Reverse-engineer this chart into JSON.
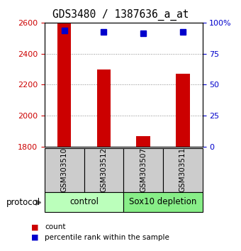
{
  "title": "GDS3480 / 1387636_a_at",
  "samples": [
    "GSM303510",
    "GSM303512",
    "GSM303507",
    "GSM303511"
  ],
  "bar_values": [
    2598,
    2300,
    1870,
    2270
  ],
  "percentile_values": [
    93.5,
    92.5,
    91.5,
    92.5
  ],
  "bar_color": "#cc0000",
  "percentile_color": "#0000cc",
  "ylim_left": [
    1800,
    2600
  ],
  "ylim_right": [
    0,
    100
  ],
  "yticks_left": [
    1800,
    2000,
    2200,
    2400,
    2600
  ],
  "yticks_right": [
    0,
    25,
    50,
    75,
    100
  ],
  "ytick_labels_right": [
    "0",
    "25",
    "50",
    "75",
    "100%"
  ],
  "groups": [
    {
      "label": "control",
      "indices": [
        0,
        1
      ],
      "color": "#bbffbb"
    },
    {
      "label": "Sox10 depletion",
      "indices": [
        2,
        3
      ],
      "color": "#88ee88"
    }
  ],
  "protocol_label": "protocol",
  "legend_items": [
    {
      "label": "count",
      "color": "#cc0000"
    },
    {
      "label": "percentile rank within the sample",
      "color": "#0000cc"
    }
  ],
  "bar_width": 0.35,
  "grid_color": "#888888",
  "tick_color_left": "#cc0000",
  "tick_color_right": "#0000cc",
  "label_area_color": "#cccccc"
}
